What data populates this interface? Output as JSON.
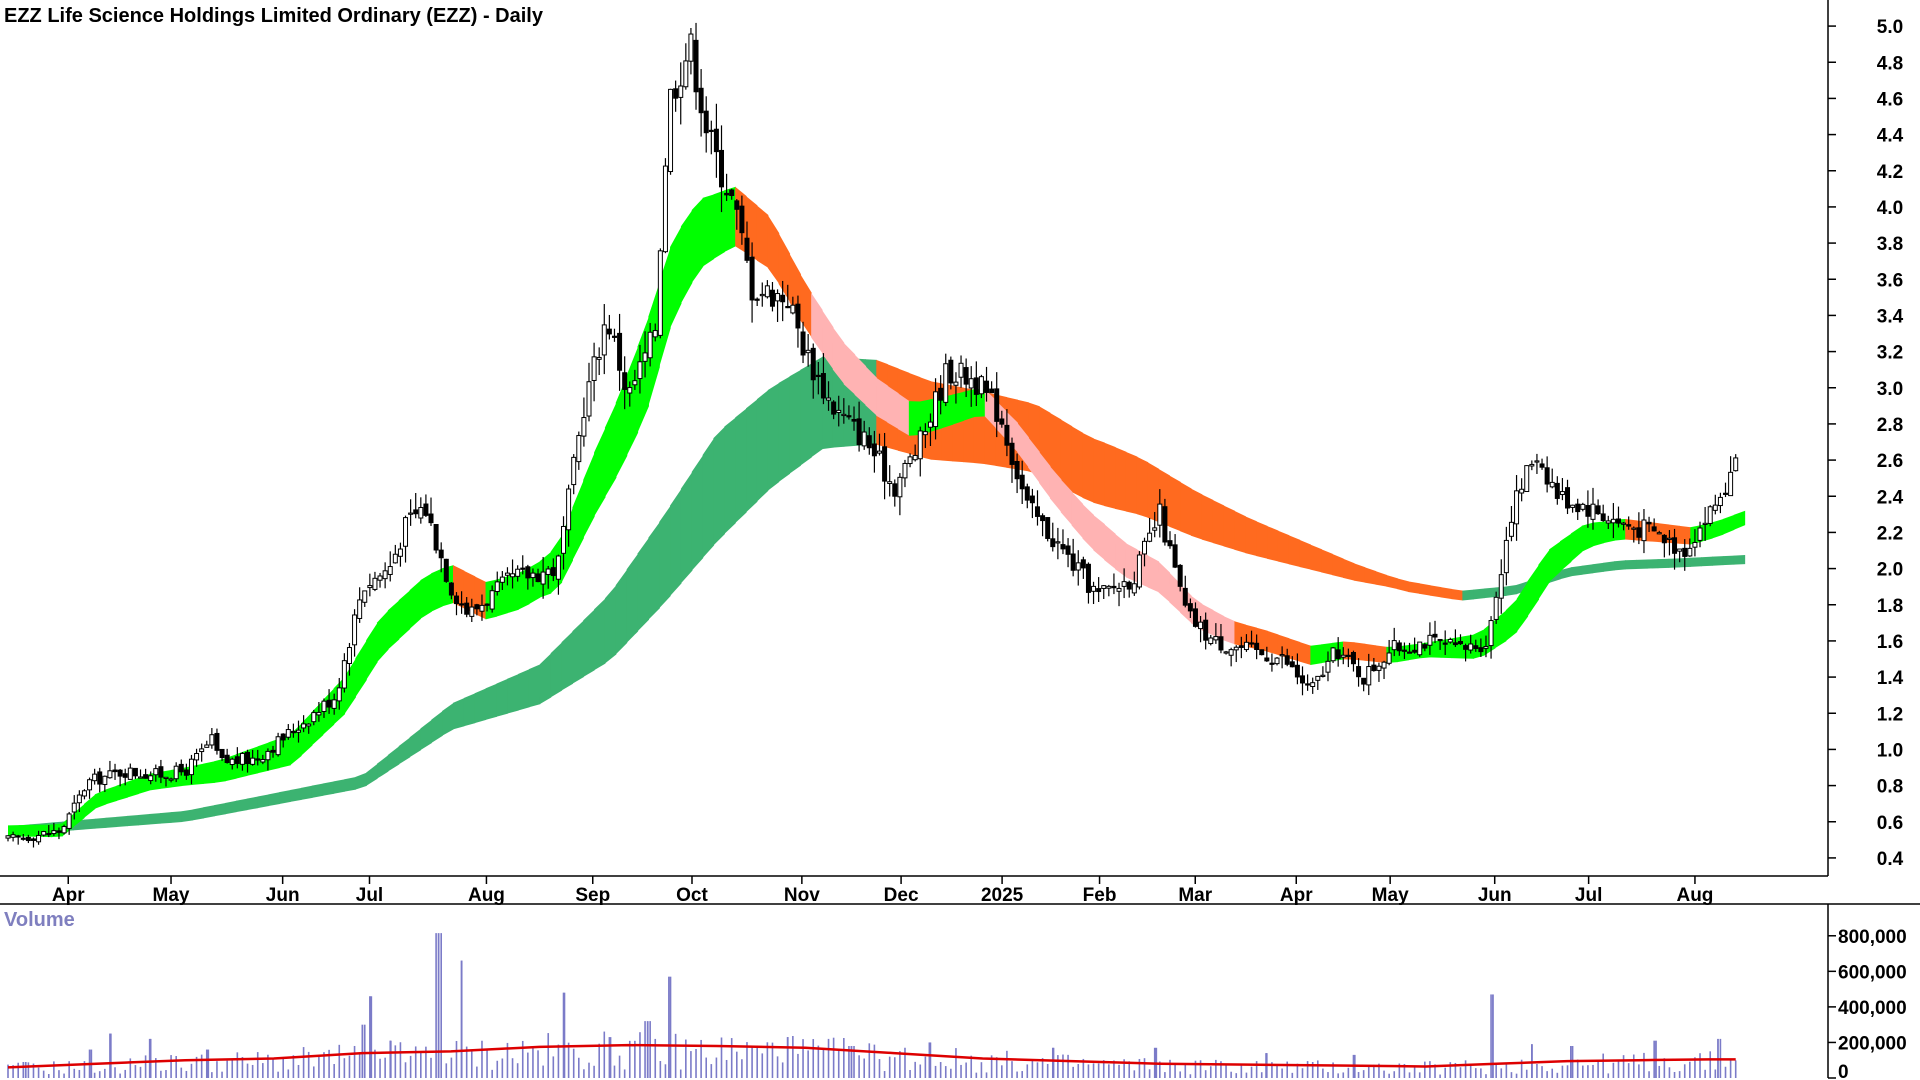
{
  "chart_data": [
    {
      "type": "candlestick",
      "title": "EZZ Life Science Holdings Limited Ordinary (EZZ) - Daily",
      "y_axis_side": "right",
      "ylim": [
        0.3,
        5.1
      ],
      "y_ticks": [
        0.4,
        0.6,
        0.8,
        1.0,
        1.2,
        1.4,
        1.6,
        1.8,
        2.0,
        2.2,
        2.4,
        2.6,
        2.8,
        3.0,
        3.2,
        3.4,
        3.6,
        3.8,
        4.0,
        4.2,
        4.4,
        4.6,
        4.8,
        5.0
      ],
      "y_tick_labels": [
        "0.4",
        "0.6",
        "0.8",
        "1.0",
        "1.2",
        "1.4",
        "1.6",
        "1.8",
        "2.0",
        "2.2",
        "2.4",
        "2.6",
        "2.8",
        "3.0",
        "3.2",
        "3.4",
        "3.6",
        "3.8",
        "4.0",
        "4.2",
        "4.4",
        "4.6",
        "4.8",
        "5.0"
      ],
      "x_ticks": [
        {
          "label": "Apr",
          "t": 0.034
        },
        {
          "label": "May",
          "t": 0.092
        },
        {
          "label": "Jun",
          "t": 0.155
        },
        {
          "label": "Jul",
          "t": 0.204
        },
        {
          "label": "Aug",
          "t": 0.27
        },
        {
          "label": "Sep",
          "t": 0.33
        },
        {
          "label": "Oct",
          "t": 0.386
        },
        {
          "label": "Nov",
          "t": 0.448
        },
        {
          "label": "Dec",
          "t": 0.504
        },
        {
          "label": "2025",
          "t": 0.561
        },
        {
          "label": "Feb",
          "t": 0.616
        },
        {
          "label": "Mar",
          "t": 0.67
        },
        {
          "label": "Apr",
          "t": 0.727
        },
        {
          "label": "May",
          "t": 0.78
        },
        {
          "label": "Jun",
          "t": 0.839
        },
        {
          "label": "Jul",
          "t": 0.892
        },
        {
          "label": "Aug",
          "t": 0.952
        }
      ],
      "price_path": [
        [
          0.0,
          0.5
        ],
        [
          0.03,
          0.55
        ],
        [
          0.045,
          0.82
        ],
        [
          0.065,
          0.88
        ],
        [
          0.085,
          0.86
        ],
        [
          0.1,
          0.88
        ],
        [
          0.115,
          1.05
        ],
        [
          0.12,
          0.93
        ],
        [
          0.14,
          0.95
        ],
        [
          0.16,
          1.1
        ],
        [
          0.185,
          1.3
        ],
        [
          0.2,
          1.9
        ],
        [
          0.215,
          2.0
        ],
        [
          0.225,
          2.25
        ],
        [
          0.235,
          2.35
        ],
        [
          0.25,
          1.9
        ],
        [
          0.26,
          1.75
        ],
        [
          0.285,
          1.95
        ],
        [
          0.31,
          2.0
        ],
        [
          0.325,
          2.9
        ],
        [
          0.338,
          3.4
        ],
        [
          0.35,
          2.95
        ],
        [
          0.365,
          3.3
        ],
        [
          0.373,
          4.6
        ],
        [
          0.385,
          4.9
        ],
        [
          0.395,
          4.4
        ],
        [
          0.41,
          4.0
        ],
        [
          0.42,
          3.55
        ],
        [
          0.44,
          3.5
        ],
        [
          0.45,
          3.2
        ],
        [
          0.465,
          2.9
        ],
        [
          0.485,
          2.7
        ],
        [
          0.5,
          2.45
        ],
        [
          0.515,
          2.7
        ],
        [
          0.53,
          3.1
        ],
        [
          0.545,
          3.05
        ],
        [
          0.56,
          2.85
        ],
        [
          0.575,
          2.35
        ],
        [
          0.595,
          2.1
        ],
        [
          0.615,
          1.85
        ],
        [
          0.635,
          1.95
        ],
        [
          0.65,
          2.3
        ],
        [
          0.665,
          1.75
        ],
        [
          0.68,
          1.6
        ],
        [
          0.7,
          1.55
        ],
        [
          0.72,
          1.5
        ],
        [
          0.735,
          1.32
        ],
        [
          0.75,
          1.55
        ],
        [
          0.765,
          1.4
        ],
        [
          0.78,
          1.55
        ],
        [
          0.8,
          1.6
        ],
        [
          0.82,
          1.55
        ],
        [
          0.835,
          1.6
        ],
        [
          0.848,
          2.3
        ],
        [
          0.862,
          2.65
        ],
        [
          0.875,
          2.4
        ],
        [
          0.89,
          2.35
        ],
        [
          0.91,
          2.25
        ],
        [
          0.93,
          2.2
        ],
        [
          0.945,
          2.1
        ],
        [
          0.96,
          2.3
        ],
        [
          0.975,
          2.55
        ]
      ],
      "series": [
        {
          "name": "",
          "role": "short_ema_band",
          "colors": {
            "up": "#00ff00",
            "down": "#ff6a1f",
            "down_faded": "#ffb3b3"
          },
          "path": [
            [
              0.0,
              0.55
            ],
            [
              0.03,
              0.55
            ],
            [
              0.05,
              0.72
            ],
            [
              0.08,
              0.82
            ],
            [
              0.12,
              0.88
            ],
            [
              0.16,
              1.0
            ],
            [
              0.19,
              1.3
            ],
            [
              0.21,
              1.62
            ],
            [
              0.235,
              1.85
            ],
            [
              0.25,
              1.92
            ],
            [
              0.27,
              1.82
            ],
            [
              0.29,
              1.88
            ],
            [
              0.31,
              2.0
            ],
            [
              0.33,
              2.45
            ],
            [
              0.345,
              2.75
            ],
            [
              0.36,
              3.1
            ],
            [
              0.375,
              3.6
            ],
            [
              0.39,
              3.85
            ],
            [
              0.41,
              3.95
            ],
            [
              0.43,
              3.8
            ],
            [
              0.45,
              3.45
            ],
            [
              0.47,
              3.15
            ],
            [
              0.49,
              2.95
            ],
            [
              0.51,
              2.82
            ],
            [
              0.53,
              2.87
            ],
            [
              0.55,
              2.93
            ],
            [
              0.57,
              2.72
            ],
            [
              0.59,
              2.45
            ],
            [
              0.61,
              2.22
            ],
            [
              0.63,
              2.05
            ],
            [
              0.65,
              1.95
            ],
            [
              0.67,
              1.75
            ],
            [
              0.69,
              1.65
            ],
            [
              0.71,
              1.6
            ],
            [
              0.735,
              1.52
            ],
            [
              0.755,
              1.55
            ],
            [
              0.78,
              1.52
            ],
            [
              0.8,
              1.55
            ],
            [
              0.83,
              1.57
            ],
            [
              0.85,
              1.72
            ],
            [
              0.87,
              2.02
            ],
            [
              0.89,
              2.18
            ],
            [
              0.91,
              2.22
            ],
            [
              0.93,
              2.2
            ],
            [
              0.95,
              2.18
            ],
            [
              0.965,
              2.22
            ],
            [
              0.98,
              2.28
            ]
          ],
          "width": [
            [
              0.0,
              0.06
            ],
            [
              0.1,
              0.1
            ],
            [
              0.2,
              0.22
            ],
            [
              0.3,
              0.2
            ],
            [
              0.36,
              0.5
            ],
            [
              0.4,
              0.35
            ],
            [
              0.45,
              0.25
            ],
            [
              0.55,
              0.15
            ],
            [
              0.62,
              0.2
            ],
            [
              0.7,
              0.12
            ],
            [
              0.8,
              0.08
            ],
            [
              0.86,
              0.2
            ],
            [
              0.9,
              0.12
            ],
            [
              0.98,
              0.08
            ]
          ]
        },
        {
          "name": "",
          "role": "long_ema_band",
          "colors": {
            "up": "#3cb371",
            "down": "#ff6a1f"
          },
          "path": [
            [
              0.0,
              0.55
            ],
            [
              0.1,
              0.63
            ],
            [
              0.2,
              0.82
            ],
            [
              0.25,
              1.18
            ],
            [
              0.3,
              1.36
            ],
            [
              0.34,
              1.68
            ],
            [
              0.37,
              2.05
            ],
            [
              0.4,
              2.45
            ],
            [
              0.43,
              2.72
            ],
            [
              0.46,
              2.92
            ],
            [
              0.49,
              2.92
            ],
            [
              0.52,
              2.82
            ],
            [
              0.55,
              2.78
            ],
            [
              0.58,
              2.72
            ],
            [
              0.61,
              2.55
            ],
            [
              0.64,
              2.45
            ],
            [
              0.67,
              2.3
            ],
            [
              0.7,
              2.18
            ],
            [
              0.73,
              2.08
            ],
            [
              0.76,
              1.98
            ],
            [
              0.79,
              1.9
            ],
            [
              0.82,
              1.85
            ],
            [
              0.85,
              1.88
            ],
            [
              0.88,
              1.98
            ],
            [
              0.91,
              2.02
            ],
            [
              0.94,
              2.03
            ],
            [
              0.98,
              2.05
            ]
          ],
          "width": [
            [
              0.0,
              0.05
            ],
            [
              0.2,
              0.07
            ],
            [
              0.3,
              0.22
            ],
            [
              0.4,
              0.6
            ],
            [
              0.48,
              0.48
            ],
            [
              0.55,
              0.4
            ],
            [
              0.62,
              0.35
            ],
            [
              0.7,
              0.2
            ],
            [
              0.78,
              0.06
            ],
            [
              0.86,
              0.05
            ],
            [
              0.98,
              0.05
            ]
          ]
        }
      ]
    },
    {
      "type": "bar",
      "title": "Volume",
      "ylim": [
        0,
        900000
      ],
      "y_ticks": [
        0,
        200000,
        400000,
        600000,
        800000
      ],
      "y_tick_labels": [
        "0",
        "200,000",
        "400,000",
        "600,000",
        "800,000"
      ],
      "bar_color": "#7b7bc8",
      "average_line_color": "#dd0000",
      "volume_spikes": [
        [
          0.01,
          90000
        ],
        [
          0.047,
          160000
        ],
        [
          0.058,
          250000
        ],
        [
          0.08,
          220000
        ],
        [
          0.113,
          160000
        ],
        [
          0.2,
          300000
        ],
        [
          0.205,
          460000
        ],
        [
          0.216,
          210000
        ],
        [
          0.243,
          815000
        ],
        [
          0.256,
          660000
        ],
        [
          0.314,
          480000
        ],
        [
          0.34,
          230000
        ],
        [
          0.361,
          320000
        ],
        [
          0.373,
          570000
        ],
        [
          0.44,
          230000
        ],
        [
          0.476,
          180000
        ],
        [
          0.52,
          200000
        ],
        [
          0.59,
          170000
        ],
        [
          0.648,
          170000
        ],
        [
          0.71,
          140000
        ],
        [
          0.76,
          130000
        ],
        [
          0.838,
          470000
        ],
        [
          0.86,
          190000
        ],
        [
          0.882,
          180000
        ],
        [
          0.93,
          210000
        ],
        [
          0.965,
          220000
        ]
      ],
      "volume_average": [
        [
          0.0,
          60000
        ],
        [
          0.05,
          80000
        ],
        [
          0.1,
          100000
        ],
        [
          0.15,
          110000
        ],
        [
          0.2,
          140000
        ],
        [
          0.25,
          150000
        ],
        [
          0.3,
          175000
        ],
        [
          0.35,
          185000
        ],
        [
          0.4,
          180000
        ],
        [
          0.45,
          170000
        ],
        [
          0.5,
          140000
        ],
        [
          0.55,
          110000
        ],
        [
          0.6,
          95000
        ],
        [
          0.65,
          80000
        ],
        [
          0.7,
          75000
        ],
        [
          0.75,
          70000
        ],
        [
          0.8,
          65000
        ],
        [
          0.84,
          80000
        ],
        [
          0.88,
          95000
        ],
        [
          0.92,
          100000
        ],
        [
          0.96,
          105000
        ],
        [
          0.975,
          105000
        ]
      ]
    }
  ]
}
